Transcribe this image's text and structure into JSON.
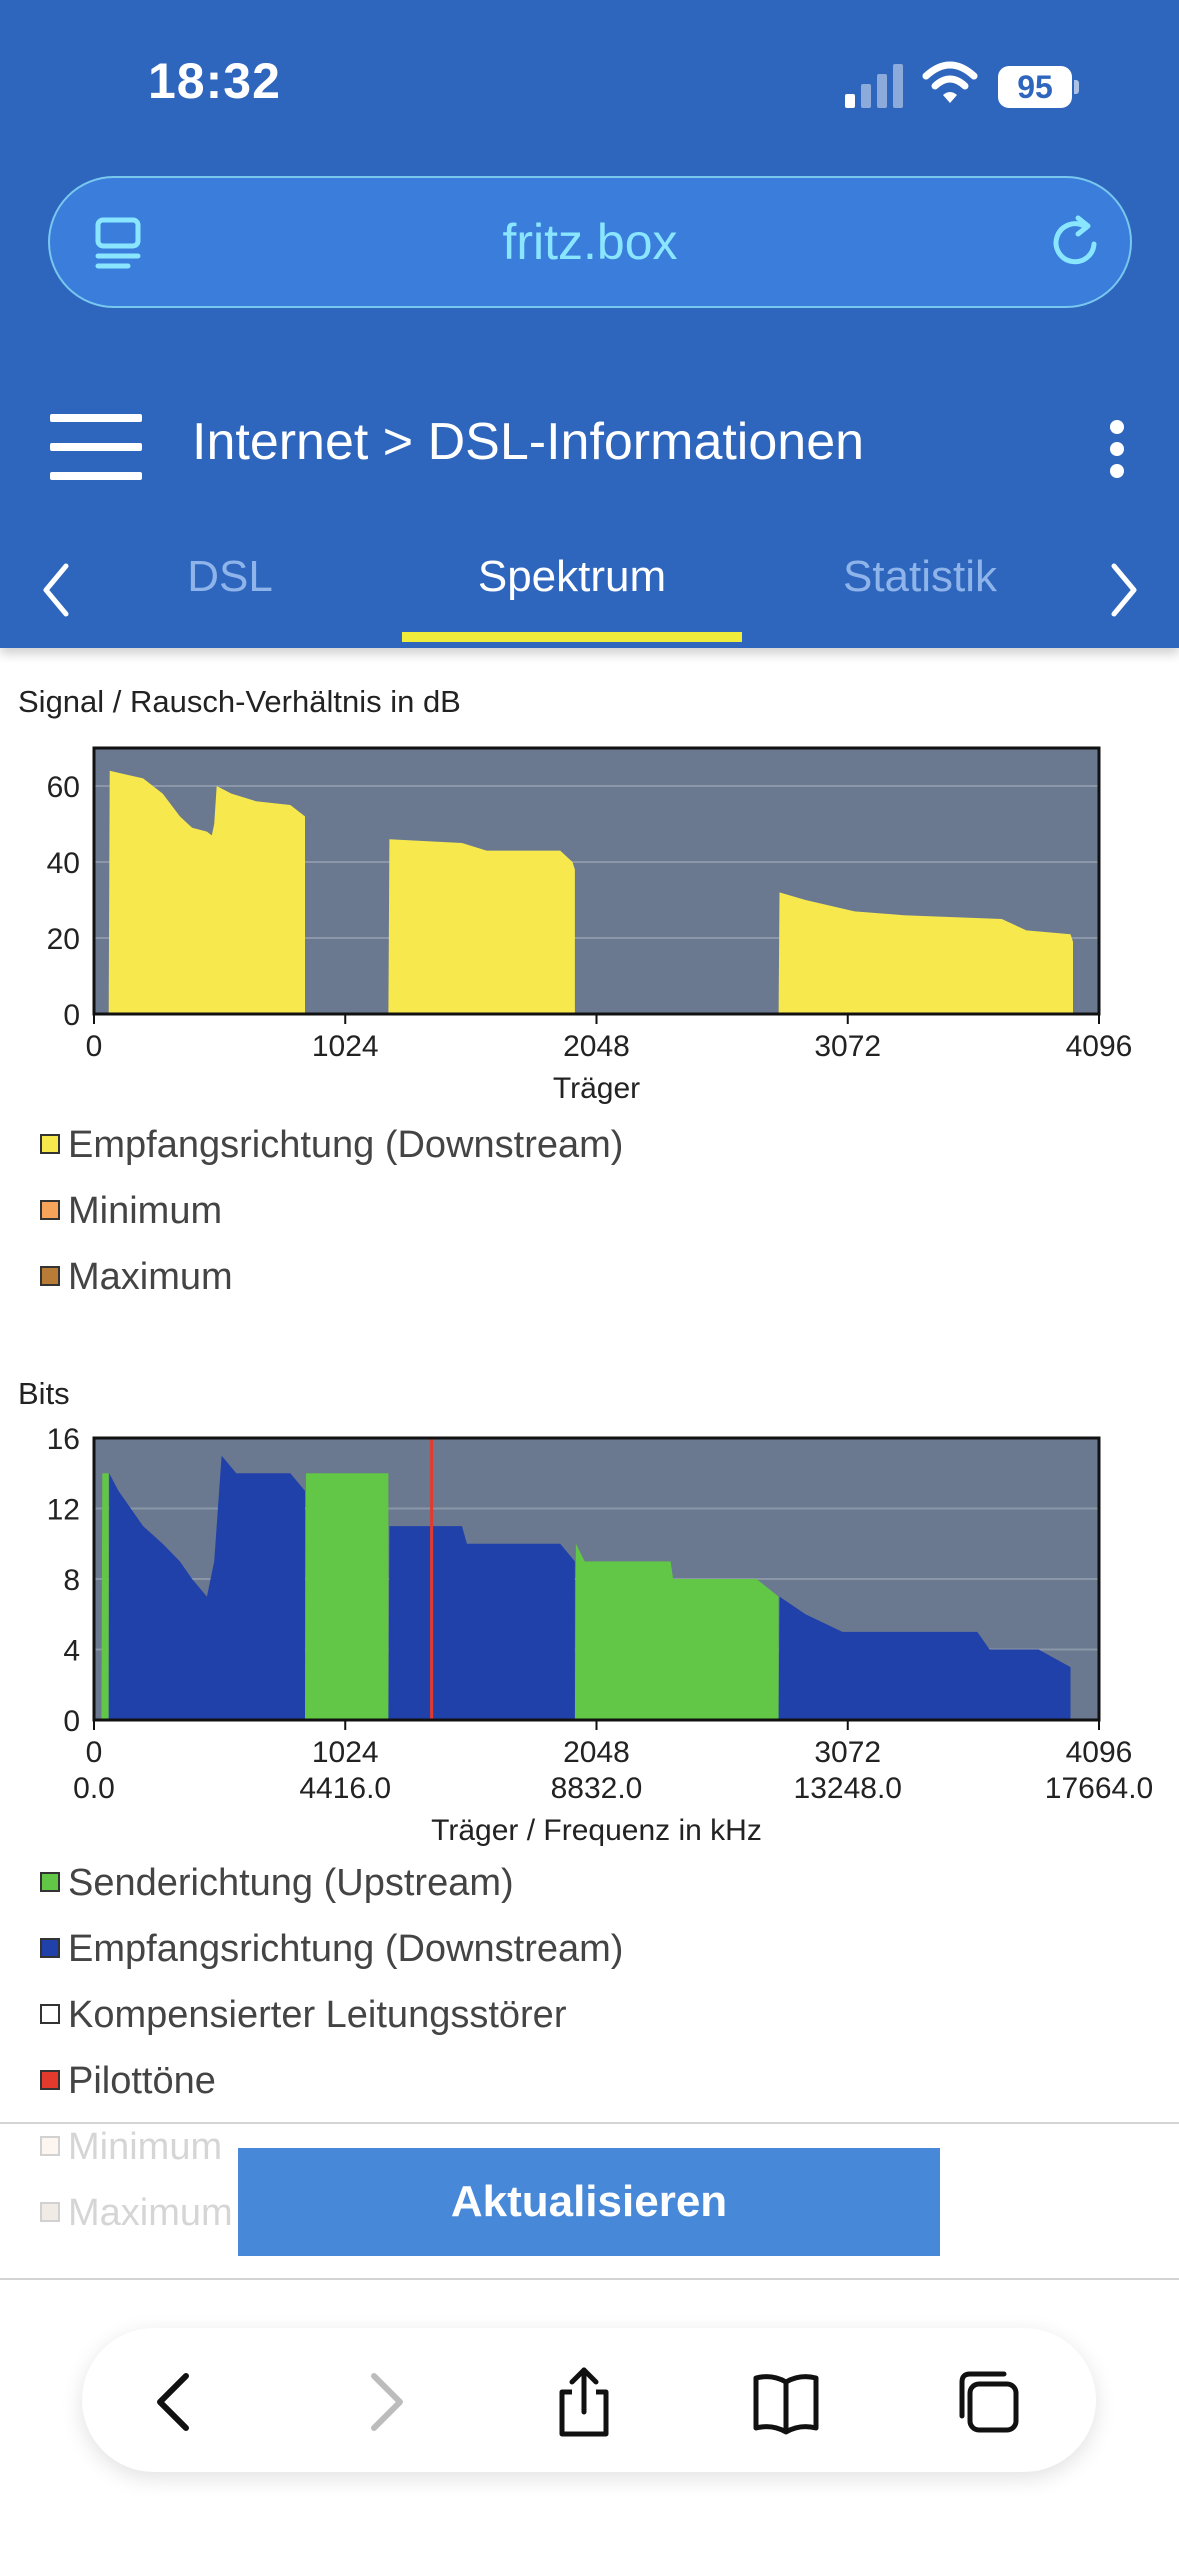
{
  "status_bar": {
    "time": "18:32",
    "battery": "95"
  },
  "browser": {
    "url": "fritz.box"
  },
  "nav": {
    "breadcrumb": "Internet > DSL-Informationen"
  },
  "tabs": [
    {
      "label": "DSL",
      "active": false
    },
    {
      "label": "Spektrum",
      "active": true
    },
    {
      "label": "Statistik",
      "active": false
    }
  ],
  "chart_data": [
    {
      "type": "area",
      "title": "Signal / Rausch-Verhältnis in dB",
      "xlabel": "Träger",
      "ylabel": "",
      "xlim": [
        0,
        4096
      ],
      "ylim": [
        0,
        70
      ],
      "xticks": [
        "0",
        "1024",
        "2048",
        "3072",
        "4096"
      ],
      "yticks": [
        "0",
        "20",
        "40",
        "60"
      ],
      "grid": true,
      "series": [
        {
          "name": "Empfangsrichtung (Downstream)",
          "color": "#f7e84e",
          "segments": [
            [
              [
                60,
                0
              ],
              [
                64,
                64
              ],
              [
                200,
                62
              ],
              [
                280,
                58
              ],
              [
                350,
                52
              ],
              [
                400,
                49
              ],
              [
                460,
                48
              ],
              [
                480,
                47
              ],
              [
                490,
                50
              ],
              [
                500,
                60
              ],
              [
                560,
                58
              ],
              [
                660,
                56
              ],
              [
                800,
                55
              ],
              [
                860,
                52
              ],
              [
                860,
                0
              ]
            ],
            [
              [
                1200,
                0
              ],
              [
                1204,
                46
              ],
              [
                1500,
                45
              ],
              [
                1600,
                43
              ],
              [
                1900,
                43
              ],
              [
                1950,
                40
              ],
              [
                1960,
                38
              ],
              [
                1960,
                0
              ]
            ],
            [
              [
                2790,
                0
              ],
              [
                2794,
                32
              ],
              [
                2900,
                30
              ],
              [
                3100,
                27
              ],
              [
                3300,
                26
              ],
              [
                3700,
                25
              ],
              [
                3800,
                22
              ],
              [
                3980,
                21
              ],
              [
                3990,
                19
              ],
              [
                3990,
                0
              ]
            ]
          ]
        }
      ],
      "legend": [
        {
          "label": "Empfangsrichtung (Downstream)",
          "color": "#f7e84e"
        },
        {
          "label": "Minimum",
          "color": "#f5a45a"
        },
        {
          "label": "Maximum",
          "color": "#b97c36"
        }
      ]
    },
    {
      "type": "area",
      "title": "Bits",
      "xlabel": "Träger / Frequenz in kHz",
      "ylabel": "",
      "xlim": [
        0,
        4096
      ],
      "ylim": [
        0,
        16
      ],
      "xticks": [
        "0",
        "1024",
        "2048",
        "3072",
        "4096"
      ],
      "xticks2": [
        "0.0",
        "4416.0",
        "8832.0",
        "13248.0",
        "17664.0"
      ],
      "yticks": [
        "0",
        "4",
        "8",
        "12",
        "16"
      ],
      "grid": true,
      "series": [
        {
          "name": "Senderichtung (Upstream)",
          "color": "#62c646",
          "segments": [
            [
              [
                30,
                0
              ],
              [
                34,
                14
              ],
              [
                60,
                14
              ],
              [
                60,
                0
              ]
            ],
            [
              [
                860,
                0
              ],
              [
                864,
                14
              ],
              [
                1090,
                14
              ],
              [
                1200,
                14
              ],
              [
                1200,
                0
              ]
            ],
            [
              [
                1960,
                0
              ],
              [
                1964,
                10
              ],
              [
                2000,
                9
              ],
              [
                2350,
                9
              ],
              [
                2360,
                8
              ],
              [
                2700,
                8
              ],
              [
                2790,
                7
              ],
              [
                2790,
                0
              ]
            ]
          ]
        },
        {
          "name": "Empfangsrichtung (Downstream)",
          "color": "#2141aa",
          "segments": [
            [
              [
                60,
                0
              ],
              [
                62,
                14
              ],
              [
                100,
                13
              ],
              [
                200,
                11
              ],
              [
                280,
                10
              ],
              [
                350,
                9
              ],
              [
                400,
                8
              ],
              [
                460,
                7
              ],
              [
                490,
                9
              ],
              [
                520,
                15
              ],
              [
                580,
                14
              ],
              [
                800,
                14
              ],
              [
                860,
                13
              ],
              [
                860,
                0
              ]
            ],
            [
              [
                1200,
                0
              ],
              [
                1204,
                11
              ],
              [
                1500,
                11
              ],
              [
                1520,
                10
              ],
              [
                1900,
                10
              ],
              [
                1960,
                9
              ],
              [
                1960,
                0
              ]
            ],
            [
              [
                2790,
                0
              ],
              [
                2794,
                7
              ],
              [
                2900,
                6
              ],
              [
                3050,
                5
              ],
              [
                3600,
                5
              ],
              [
                3650,
                4
              ],
              [
                3850,
                4
              ],
              [
                3980,
                3
              ],
              [
                3980,
                0
              ]
            ]
          ]
        }
      ],
      "pilot_tones": [
        1376
      ],
      "legend": [
        {
          "label": "Senderichtung (Upstream)",
          "color": "#62c646"
        },
        {
          "label": "Empfangsrichtung (Downstream)",
          "color": "#2141aa"
        },
        {
          "label": "Kompensierter Leitungsstörer",
          "color": "#ffffff"
        },
        {
          "label": "Pilottöne",
          "color": "#e23b2e"
        },
        {
          "label": "Minimum",
          "color": "#f7d6b8"
        },
        {
          "label": "Maximum",
          "color": "#bfa78c"
        }
      ]
    }
  ],
  "actions": {
    "refresh_label": "Aktualisieren"
  },
  "toolbar_icons": [
    "back-icon",
    "forward-icon",
    "share-icon",
    "bookmarks-icon",
    "tabs-icon"
  ],
  "colors": {
    "header": "#2f66bd",
    "plot_bg": "#6a7990",
    "button": "#4789d8",
    "active_tab_underline": "#f0ec3c"
  }
}
